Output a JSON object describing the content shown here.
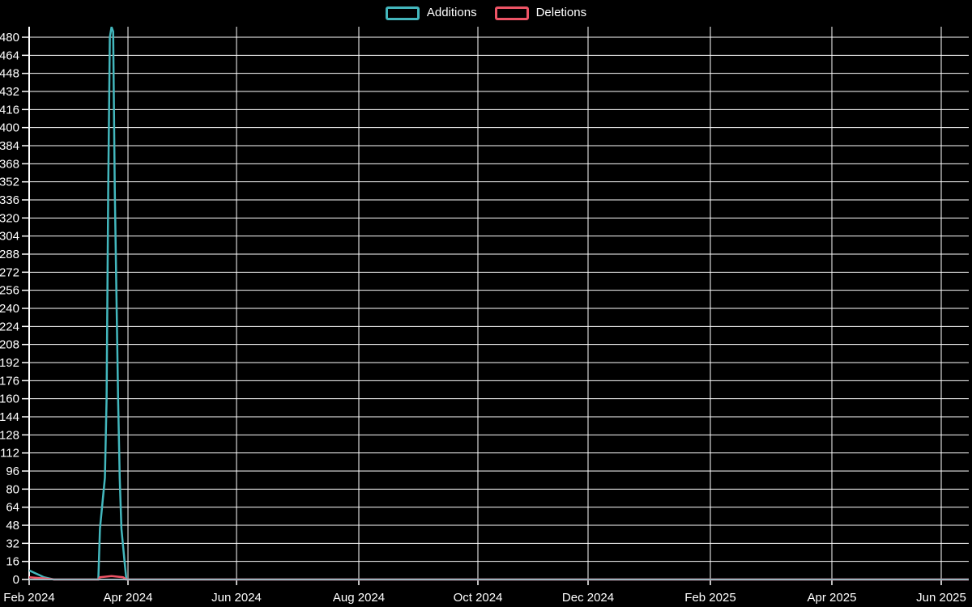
{
  "legend": {
    "items": [
      {
        "label": "Additions",
        "color": "#43b7bd"
      },
      {
        "label": "Deletions",
        "color": "#ee5466"
      }
    ]
  },
  "chart_data": {
    "type": "line",
    "title": "",
    "xlabel": "",
    "ylabel": "",
    "background_color": "#000000",
    "grid": true,
    "gridline_color": "#ffffff",
    "axis_line_color": "#9cb4bf",
    "text_color": "#ffffff",
    "legend_position": "top-center",
    "ylim": [
      0,
      489
    ],
    "y_axis": {
      "min": 0,
      "max": 480,
      "step": 16
    },
    "x_ticks": [
      {
        "label": "Feb 2024",
        "date": "2024-02-01"
      },
      {
        "label": "Apr 2024",
        "date": "2024-04-01"
      },
      {
        "label": "Jun 2024",
        "date": "2024-06-01"
      },
      {
        "label": "Aug 2024",
        "date": "2024-08-01"
      },
      {
        "label": "Oct 2024",
        "date": "2024-10-01"
      },
      {
        "label": "Dec 2024",
        "date": "2024-12-01"
      },
      {
        "label": "Feb 2025",
        "date": "2025-02-01"
      },
      {
        "label": "Apr 2025",
        "date": "2025-04-01"
      },
      {
        "label": "Jun 2025",
        "date": "2025-06-01"
      }
    ],
    "x_end_date": "2025-06-18",
    "series": [
      {
        "name": "Additions",
        "color": "#43b7bd",
        "points": [
          [
            "2024-02-01",
            8
          ],
          [
            "2024-02-04",
            6
          ],
          [
            "2024-02-07",
            4
          ],
          [
            "2024-02-10",
            2
          ],
          [
            "2024-02-13",
            1
          ],
          [
            "2024-02-16",
            0
          ],
          [
            "2024-03-14",
            0
          ],
          [
            "2024-03-15",
            45
          ],
          [
            "2024-03-18",
            90
          ],
          [
            "2024-03-19",
            160
          ],
          [
            "2024-03-20",
            345
          ],
          [
            "2024-03-21",
            480
          ],
          [
            "2024-03-22",
            489
          ],
          [
            "2024-03-23",
            485
          ],
          [
            "2024-03-24",
            345
          ],
          [
            "2024-03-26",
            160
          ],
          [
            "2024-03-27",
            90
          ],
          [
            "2024-03-28",
            45
          ],
          [
            "2024-03-30",
            15
          ],
          [
            "2024-03-31",
            0
          ],
          [
            "2025-06-18",
            0
          ]
        ]
      },
      {
        "name": "Deletions",
        "color": "#ee5466",
        "points": [
          [
            "2024-02-01",
            2
          ],
          [
            "2024-02-10",
            1
          ],
          [
            "2024-02-16",
            0
          ],
          [
            "2024-03-14",
            0
          ],
          [
            "2024-03-15",
            2
          ],
          [
            "2024-03-22",
            3
          ],
          [
            "2024-03-29",
            2
          ],
          [
            "2024-03-31",
            0
          ],
          [
            "2025-06-18",
            0
          ]
        ]
      }
    ]
  }
}
